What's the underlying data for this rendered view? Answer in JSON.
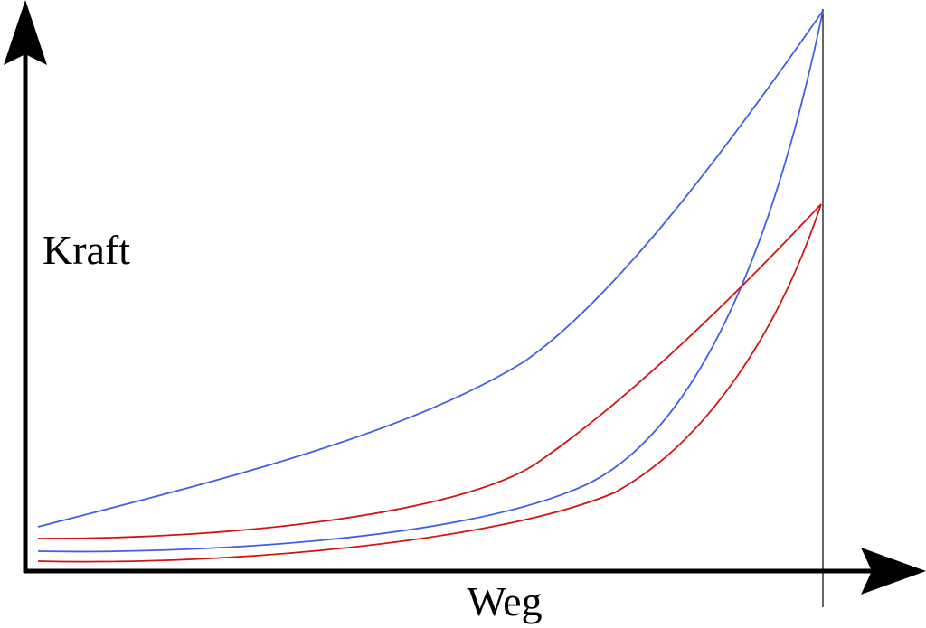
{
  "axes": {
    "y_label": "Kraft",
    "x_label": "Weg"
  }
}
